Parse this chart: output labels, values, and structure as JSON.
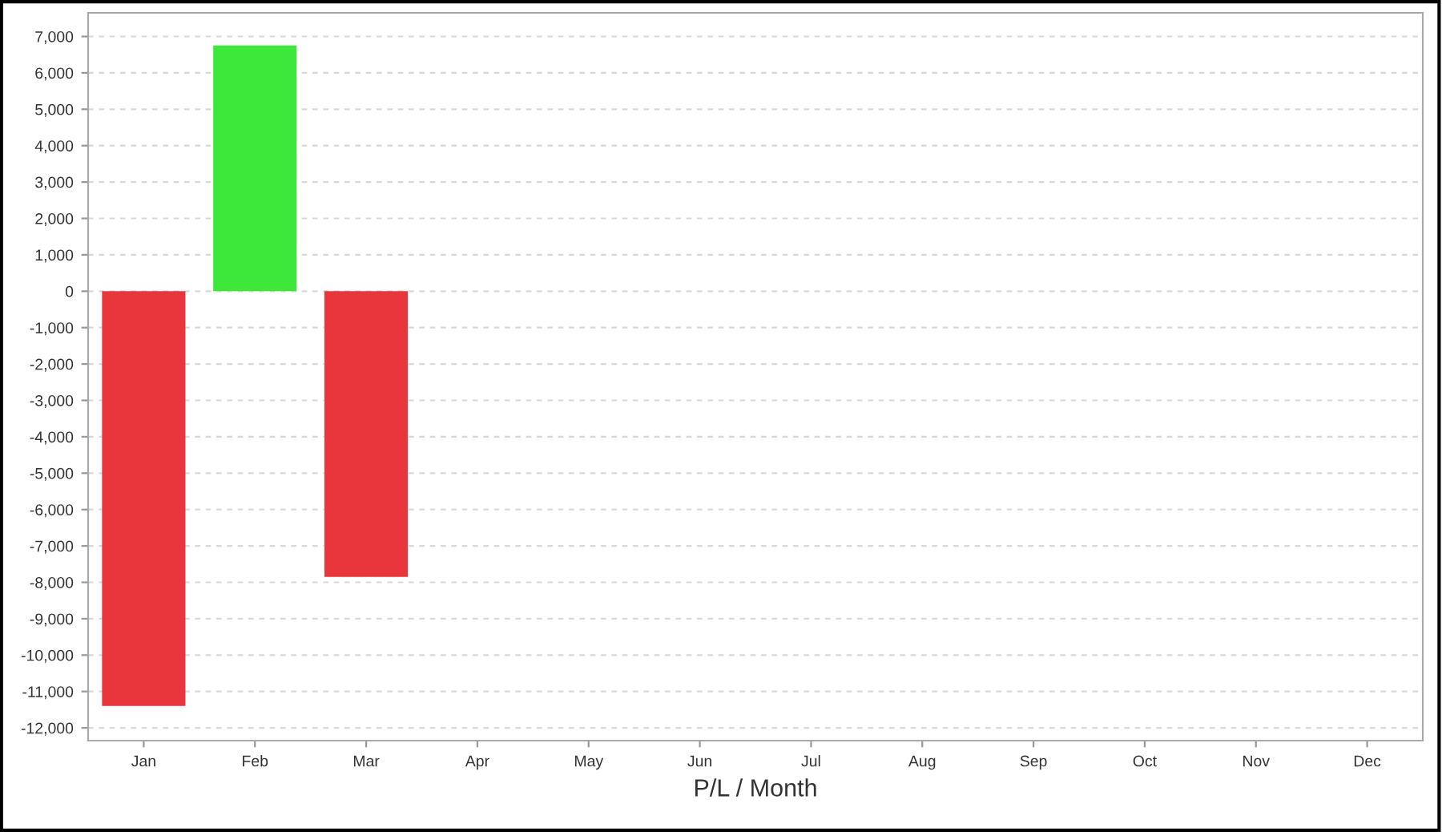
{
  "chart_data": {
    "type": "bar",
    "xlabel": "P/L / Month",
    "categories": [
      "Jan",
      "Feb",
      "Mar",
      "Apr",
      "May",
      "Jun",
      "Jul",
      "Aug",
      "Sep",
      "Oct",
      "Nov",
      "Dec"
    ],
    "values": [
      -11400,
      6750,
      -7850,
      null,
      null,
      null,
      null,
      null,
      null,
      null,
      null,
      null
    ],
    "colors": [
      "#e8363c",
      "#3de83a",
      "#e8363c",
      "#e8363c",
      "#e8363c",
      "#e8363c",
      "#e8363c",
      "#e8363c",
      "#e8363c",
      "#e8363c",
      "#e8363c",
      "#e8363c"
    ],
    "ylim": [
      -12350,
      7650
    ],
    "yticks": [
      {
        "value": -12000,
        "label": "-12,000"
      },
      {
        "value": -11000,
        "label": "-11,000"
      },
      {
        "value": -10000,
        "label": "-10,000"
      },
      {
        "value": -9000,
        "label": "-9,000"
      },
      {
        "value": -8000,
        "label": "-8,000"
      },
      {
        "value": -7000,
        "label": "-7,000"
      },
      {
        "value": -6000,
        "label": "-6,000"
      },
      {
        "value": -5000,
        "label": "-5,000"
      },
      {
        "value": -4000,
        "label": "-4,000"
      },
      {
        "value": -3000,
        "label": "-3,000"
      },
      {
        "value": -2000,
        "label": "-2,000"
      },
      {
        "value": -1000,
        "label": "-1,000"
      },
      0,
      {
        "value": 1000,
        "label": "1,000"
      },
      {
        "value": 2000,
        "label": "2,000"
      },
      {
        "value": 3000,
        "label": "3,000"
      },
      {
        "value": 4000,
        "label": "4,000"
      },
      {
        "value": 5000,
        "label": "5,000"
      },
      {
        "value": 6000,
        "label": "6,000"
      },
      {
        "value": 7000,
        "label": "7,000"
      }
    ],
    "grid": "y"
  }
}
